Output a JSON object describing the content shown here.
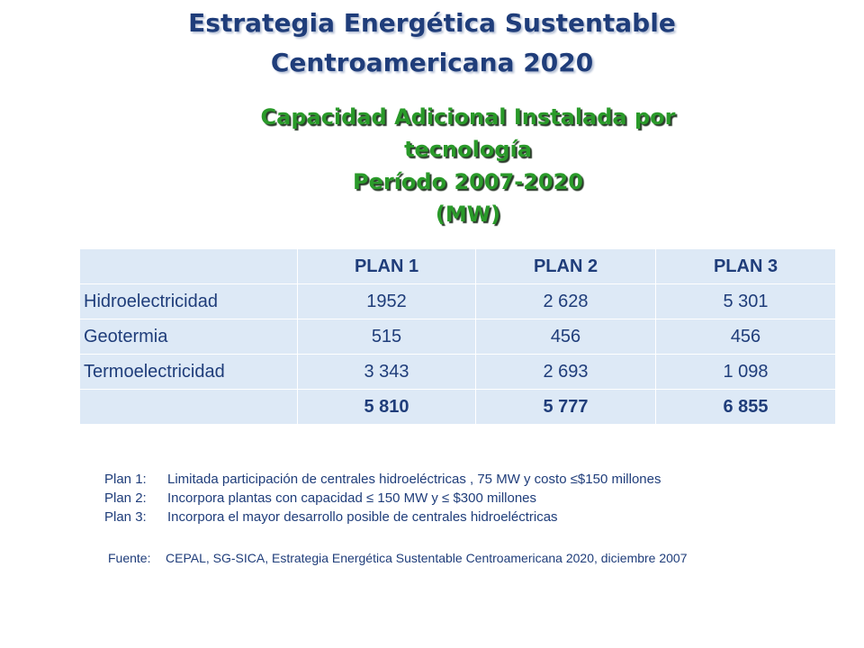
{
  "title": {
    "line1": "Estrategia Energética Sustentable",
    "line2": "Centroamericana 2020"
  },
  "subtitle": {
    "line1": "Capacidad Adicional Instalada por",
    "line2": "tecnología",
    "line3": "Período 2007-2020",
    "line4": "(MW)"
  },
  "table": {
    "headers": [
      "",
      "PLAN 1",
      "PLAN 2",
      "PLAN 3"
    ],
    "rows": [
      {
        "label": "Hidroelectricidad",
        "values": [
          "1952",
          "2 628",
          "5 301"
        ]
      },
      {
        "label": "Geotermia",
        "values": [
          "515",
          "456",
          "456"
        ]
      },
      {
        "label": "Termoelectricidad",
        "values": [
          "3 343",
          "2 693",
          "1 098"
        ]
      }
    ],
    "total": {
      "label": "",
      "values": [
        "5 810",
        "5 777",
        "6 855"
      ]
    }
  },
  "notes": [
    {
      "key": "Plan 1:",
      "text": "Limitada participación de centrales  hidroeléctricas , 75 MW y costo ≤$150 millones"
    },
    {
      "key": "Plan 2:",
      "text": "Incorpora plantas con capacidad ≤ 150 MW y  ≤ $300 millones"
    },
    {
      "key": "Plan 3:",
      "text": "Incorpora el mayor desarrollo posible de centrales hidroeléctricas"
    }
  ],
  "source": {
    "key": "Fuente:",
    "text": "CEPAL, SG-SICA, Estrategia Energética Sustentable Centroamericana 2020, diciembre 2007"
  },
  "colors": {
    "title": "#1f3d7a",
    "subtitle": "#2a9a2a",
    "table_bg": "#dde9f6",
    "text": "#1f3d7a"
  }
}
